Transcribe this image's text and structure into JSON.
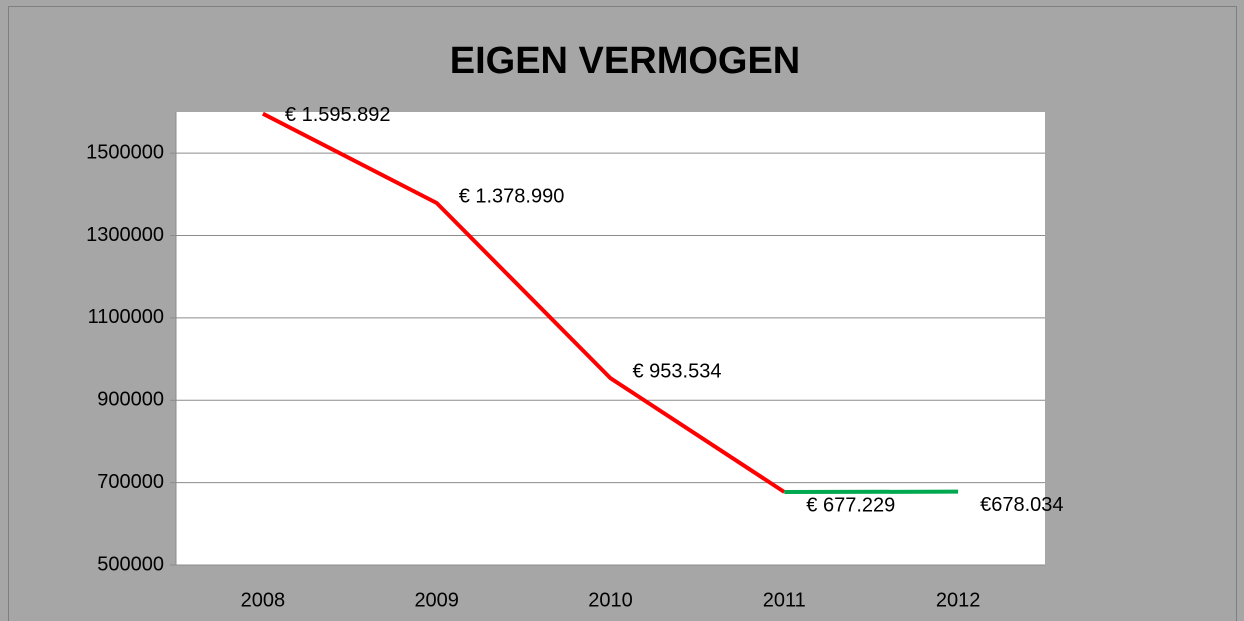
{
  "chart_data": {
    "type": "line",
    "title": "EIGEN VERMOGEN",
    "categories": [
      "2008",
      "2009",
      "2010",
      "2011",
      "2012"
    ],
    "series": [
      {
        "color": "#ff0000",
        "values": [
          1595892,
          1378990,
          953534,
          677229,
          null
        ],
        "value_labels": [
          "€ 1.595.892",
          "€ 1.378.990",
          "€ 953.534",
          "€ 677.229",
          null
        ]
      },
      {
        "color": "#00a850",
        "values": [
          null,
          null,
          null,
          677229,
          678034
        ],
        "value_labels": [
          null,
          null,
          null,
          null,
          "€678.034"
        ]
      }
    ],
    "ylim": [
      500000,
      1600000
    ],
    "yticks": [
      500000,
      700000,
      900000,
      1100000,
      1300000,
      1500000
    ],
    "grid": true
  }
}
